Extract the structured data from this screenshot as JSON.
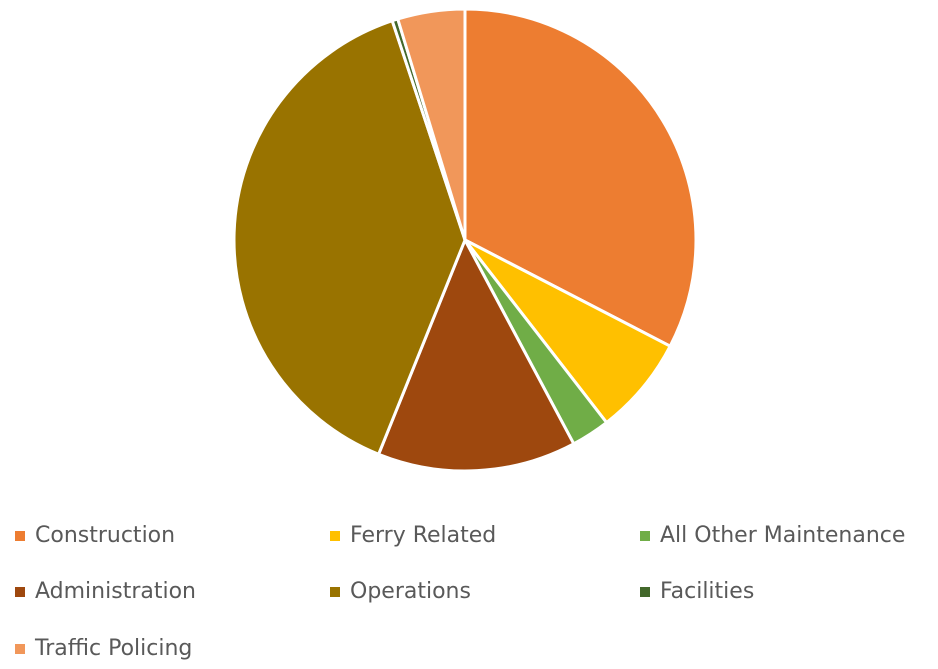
{
  "chart_data": {
    "type": "pie",
    "categories": [
      "Construction",
      "Ferry Related",
      "All Other Maintenance",
      "Administration",
      "Operations",
      "Facilities",
      "Traffic Policing"
    ],
    "values": [
      32.6,
      6.9,
      2.7,
      13.9,
      38.8,
      0.4,
      4.7
    ],
    "colors": [
      "#ED7D31",
      "#FFC000",
      "#70AD47",
      "#9E480E",
      "#997300",
      "#43682B",
      "#F1975A"
    ],
    "legend": "bottom"
  }
}
